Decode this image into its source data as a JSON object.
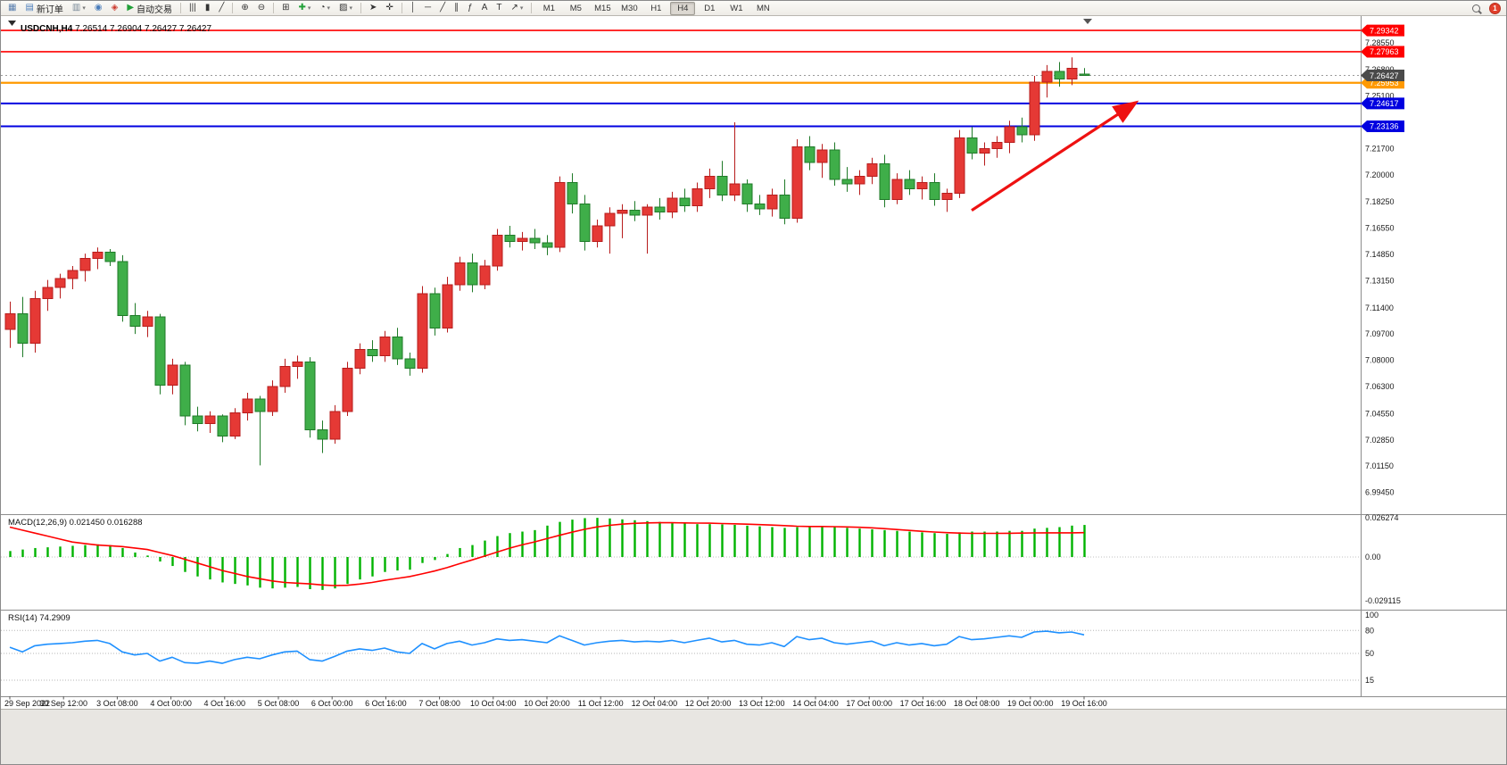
{
  "toolbar": {
    "groups": [
      {
        "items": [
          {
            "name": "new-chart",
            "glyph": "▦",
            "glyph_color": "#5a7fae"
          },
          {
            "name": "new-order",
            "glyph": "▤",
            "glyph_color": "#4a7dbb",
            "label": "新订单"
          },
          {
            "name": "profiles",
            "glyph": "▥",
            "glyph_color": "#7a8a99",
            "caret": true
          },
          {
            "name": "support",
            "glyph": "◉",
            "glyph_color": "#4a7dbb"
          },
          {
            "name": "news",
            "glyph": "◈",
            "glyph_color": "#cc3b2f"
          },
          {
            "name": "auto-trading",
            "glyph": "▶",
            "glyph_color": "#21a038",
            "label": "自动交易"
          }
        ]
      },
      {
        "items": [
          {
            "name": "chart-bars",
            "glyph": "|||"
          },
          {
            "name": "chart-candles",
            "glyph": "▮"
          },
          {
            "name": "chart-line",
            "glyph": "╱"
          }
        ]
      },
      {
        "items": [
          {
            "name": "zoom-in",
            "glyph": "⊕"
          },
          {
            "name": "zoom-out",
            "glyph": "⊖"
          }
        ]
      },
      {
        "items": [
          {
            "name": "tile-windows",
            "glyph": "⊞"
          },
          {
            "name": "indicators",
            "glyph": "✚",
            "glyph_color": "#21a038",
            "caret": true
          },
          {
            "name": "periods",
            "glyph": "◔",
            "caret": true
          },
          {
            "name": "templates",
            "glyph": "▨",
            "caret": true
          }
        ]
      },
      {
        "items": [
          {
            "name": "cursor",
            "glyph": "➤"
          },
          {
            "name": "crosshair",
            "glyph": "✛"
          }
        ]
      },
      {
        "items": [
          {
            "name": "vertical-line",
            "glyph": "│"
          },
          {
            "name": "horizontal-line",
            "glyph": "─"
          },
          {
            "name": "trendline",
            "glyph": "╱"
          },
          {
            "name": "equidistant-channel",
            "glyph": "∥"
          },
          {
            "name": "fibonacci",
            "glyph": "ƒ"
          },
          {
            "name": "text",
            "glyph": "A"
          },
          {
            "name": "text-label",
            "glyph": "T"
          },
          {
            "name": "arrows",
            "glyph": "↗",
            "caret": true
          }
        ]
      }
    ],
    "timeframes": {
      "options": [
        "M1",
        "M5",
        "M15",
        "M30",
        "H1",
        "H4",
        "D1",
        "W1",
        "MN"
      ],
      "active": "H4"
    },
    "notification_count": "1"
  },
  "chart": {
    "title_symbol": "USDCNH,H4",
    "title_ohlc": "7.26514 7.26904 7.26427 7.26427"
  },
  "chart_data": [
    {
      "type": "candlestick",
      "symbol": "USDCNH",
      "timeframe": "H4",
      "ylim": [
        6.9816,
        7.3004
      ],
      "colors": {
        "bull": "#e53935",
        "bull_border": "#b71c1c",
        "bear": "#3fae49",
        "bear_border": "#1f7a28"
      },
      "price_ticks": [
        "7.28550",
        "7.26800",
        "7.25100",
        "7.21700",
        "7.20000",
        "7.18250",
        "7.16550",
        "7.14850",
        "7.13150",
        "7.11400",
        "7.09700",
        "7.08000",
        "7.06300",
        "7.04550",
        "7.02850",
        "7.01150",
        "6.99450"
      ],
      "x_labels": [
        "29 Sep 2022",
        "30 Sep 12:00",
        "3 Oct 08:00",
        "4 Oct 00:00",
        "4 Oct 16:00",
        "5 Oct 08:00",
        "6 Oct 00:00",
        "6 Oct 16:00",
        "7 Oct 08:00",
        "10 Oct 04:00",
        "10 Oct 20:00",
        "11 Oct 12:00",
        "12 Oct 04:00",
        "12 Oct 20:00",
        "13 Oct 12:00",
        "14 Oct 04:00",
        "17 Oct 00:00",
        "17 Oct 16:00",
        "18 Oct 08:00",
        "19 Oct 00:00",
        "19 Oct 16:00"
      ],
      "hlines": [
        {
          "price": 7.29342,
          "label": "7.29342",
          "color": "#ff0000",
          "width": 1.6
        },
        {
          "price": 7.27963,
          "label": "7.27963",
          "color": "#ff0000",
          "width": 1.6
        },
        {
          "price": 7.25953,
          "label": "7.25953",
          "color": "#ff9900",
          "width": 2.2
        },
        {
          "price": 7.24617,
          "label": "7.24617",
          "color": "#0000e0",
          "width": 2
        },
        {
          "price": 7.23136,
          "label": "7.23136",
          "color": "#0000e0",
          "width": 2
        }
      ],
      "current_price": {
        "value": 7.26427,
        "label": "7.26427",
        "badge_color": "#4a4a4a"
      },
      "arrow": {
        "from_bar": 77,
        "from_price": 7.177,
        "to_bar": 90,
        "to_price": 7.246,
        "color": "#ee1111"
      },
      "ohlc": [
        [
          7.1,
          7.118,
          7.088,
          7.11
        ],
        [
          7.11,
          7.121,
          7.082,
          7.091
        ],
        [
          7.091,
          7.125,
          7.085,
          7.12
        ],
        [
          7.12,
          7.132,
          7.112,
          7.127
        ],
        [
          7.127,
          7.136,
          7.12,
          7.133
        ],
        [
          7.133,
          7.141,
          7.126,
          7.138
        ],
        [
          7.138,
          7.149,
          7.131,
          7.146
        ],
        [
          7.146,
          7.153,
          7.139,
          7.15
        ],
        [
          7.15,
          7.152,
          7.141,
          7.144
        ],
        [
          7.144,
          7.148,
          7.105,
          7.109
        ],
        [
          7.109,
          7.117,
          7.097,
          7.102
        ],
        [
          7.102,
          7.112,
          7.095,
          7.108
        ],
        [
          7.108,
          7.11,
          7.058,
          7.064
        ],
        [
          7.064,
          7.081,
          7.058,
          7.077
        ],
        [
          7.077,
          7.079,
          7.038,
          7.044
        ],
        [
          7.044,
          7.05,
          7.034,
          7.039
        ],
        [
          7.039,
          7.047,
          7.033,
          7.044
        ],
        [
          7.044,
          7.045,
          7.027,
          7.031
        ],
        [
          7.031,
          7.049,
          7.029,
          7.046
        ],
        [
          7.046,
          7.059,
          7.041,
          7.055
        ],
        [
          7.055,
          7.057,
          7.012,
          7.047
        ],
        [
          7.047,
          7.067,
          7.044,
          7.063
        ],
        [
          7.063,
          7.081,
          7.059,
          7.076
        ],
        [
          7.076,
          7.083,
          7.068,
          7.079
        ],
        [
          7.079,
          7.082,
          7.03,
          7.035
        ],
        [
          7.035,
          7.041,
          7.02,
          7.029
        ],
        [
          7.029,
          7.051,
          7.026,
          7.047
        ],
        [
          7.047,
          7.079,
          7.044,
          7.075
        ],
        [
          7.075,
          7.091,
          7.071,
          7.087
        ],
        [
          7.087,
          7.093,
          7.079,
          7.083
        ],
        [
          7.083,
          7.099,
          7.079,
          7.095
        ],
        [
          7.095,
          7.101,
          7.077,
          7.081
        ],
        [
          7.081,
          7.085,
          7.07,
          7.075
        ],
        [
          7.075,
          7.128,
          7.072,
          7.123
        ],
        [
          7.123,
          7.127,
          7.096,
          7.101
        ],
        [
          7.101,
          7.134,
          7.098,
          7.129
        ],
        [
          7.129,
          7.147,
          7.125,
          7.143
        ],
        [
          7.143,
          7.149,
          7.124,
          7.129
        ],
        [
          7.129,
          7.145,
          7.126,
          7.141
        ],
        [
          7.141,
          7.165,
          7.138,
          7.161
        ],
        [
          7.161,
          7.167,
          7.153,
          7.157
        ],
        [
          7.157,
          7.163,
          7.151,
          7.159
        ],
        [
          7.159,
          7.165,
          7.152,
          7.156
        ],
        [
          7.156,
          7.161,
          7.148,
          7.153
        ],
        [
          7.153,
          7.199,
          7.15,
          7.195
        ],
        [
          7.195,
          7.201,
          7.175,
          7.181
        ],
        [
          7.181,
          7.187,
          7.151,
          7.157
        ],
        [
          7.157,
          7.171,
          7.153,
          7.167
        ],
        [
          7.167,
          7.179,
          7.149,
          7.175
        ],
        [
          7.175,
          7.181,
          7.159,
          7.177
        ],
        [
          7.177,
          7.183,
          7.17,
          7.174
        ],
        [
          7.174,
          7.181,
          7.149,
          7.179
        ],
        [
          7.179,
          7.185,
          7.171,
          7.176
        ],
        [
          7.176,
          7.189,
          7.172,
          7.185
        ],
        [
          7.185,
          7.191,
          7.176,
          7.18
        ],
        [
          7.18,
          7.195,
          7.176,
          7.191
        ],
        [
          7.191,
          7.204,
          7.185,
          7.199
        ],
        [
          7.199,
          7.209,
          7.183,
          7.187
        ],
        [
          7.187,
          7.234,
          7.183,
          7.194
        ],
        [
          7.194,
          7.197,
          7.176,
          7.181
        ],
        [
          7.181,
          7.187,
          7.174,
          7.178
        ],
        [
          7.178,
          7.191,
          7.173,
          7.187
        ],
        [
          7.187,
          7.197,
          7.168,
          7.172
        ],
        [
          7.172,
          7.223,
          7.169,
          7.218
        ],
        [
          7.218,
          7.225,
          7.203,
          7.208
        ],
        [
          7.208,
          7.22,
          7.198,
          7.216
        ],
        [
          7.216,
          7.221,
          7.193,
          7.197
        ],
        [
          7.197,
          7.205,
          7.189,
          7.194
        ],
        [
          7.194,
          7.203,
          7.187,
          7.199
        ],
        [
          7.199,
          7.211,
          7.194,
          7.207
        ],
        [
          7.207,
          7.213,
          7.179,
          7.184
        ],
        [
          7.184,
          7.201,
          7.181,
          7.197
        ],
        [
          7.197,
          7.203,
          7.187,
          7.191
        ],
        [
          7.191,
          7.199,
          7.184,
          7.195
        ],
        [
          7.195,
          7.201,
          7.18,
          7.184
        ],
        [
          7.184,
          7.191,
          7.176,
          7.188
        ],
        [
          7.188,
          7.229,
          7.185,
          7.224
        ],
        [
          7.224,
          7.231,
          7.21,
          7.214
        ],
        [
          7.214,
          7.221,
          7.206,
          7.217
        ],
        [
          7.217,
          7.225,
          7.211,
          7.221
        ],
        [
          7.221,
          7.235,
          7.214,
          7.231
        ],
        [
          7.231,
          7.237,
          7.221,
          7.226
        ],
        [
          7.226,
          7.264,
          7.222,
          7.26
        ],
        [
          7.26,
          7.271,
          7.25,
          7.267
        ],
        [
          7.267,
          7.273,
          7.257,
          7.262
        ],
        [
          7.262,
          7.276,
          7.258,
          7.269
        ],
        [
          7.26514,
          7.26904,
          7.26427,
          7.26427
        ]
      ]
    },
    {
      "type": "bar",
      "title": "MACD(12,26,9)",
      "value_main": "0.021450",
      "value_signal": "0.016288",
      "ylim": [
        -0.03224,
        0.02806
      ],
      "axis_ticks": [
        "0.026274",
        "0.00",
        "-0.029115"
      ],
      "colors": {
        "hist": "#00b300",
        "signal": "#ff0000"
      },
      "values": [
        0.004,
        0.005,
        0.006,
        0.0065,
        0.007,
        0.0075,
        0.008,
        0.0085,
        0.008,
        0.006,
        0.003,
        0.001,
        -0.003,
        -0.006,
        -0.01,
        -0.013,
        -0.015,
        -0.017,
        -0.018,
        -0.019,
        -0.0205,
        -0.021,
        -0.0205,
        -0.02,
        -0.0215,
        -0.022,
        -0.021,
        -0.018,
        -0.015,
        -0.013,
        -0.01,
        -0.009,
        -0.0085,
        -0.004,
        -0.002,
        0.002,
        0.006,
        0.008,
        0.011,
        0.014,
        0.016,
        0.017,
        0.018,
        0.021,
        0.0235,
        0.025,
        0.026,
        0.0262,
        0.0258,
        0.0252,
        0.0246,
        0.024,
        0.0235,
        0.023,
        0.0225,
        0.022,
        0.022,
        0.0218,
        0.0215,
        0.021,
        0.0205,
        0.02,
        0.0195,
        0.02,
        0.0205,
        0.0205,
        0.02,
        0.0195,
        0.019,
        0.0185,
        0.018,
        0.0175,
        0.017,
        0.0165,
        0.016,
        0.0155,
        0.0165,
        0.017,
        0.017,
        0.017,
        0.0175,
        0.0175,
        0.019,
        0.0195,
        0.02,
        0.021,
        0.02145
      ],
      "signal": [
        0.02,
        0.018,
        0.016,
        0.014,
        0.012,
        0.01,
        0.009,
        0.008,
        0.0075,
        0.007,
        0.006,
        0.005,
        0.003,
        0.001,
        -0.0015,
        -0.004,
        -0.0065,
        -0.009,
        -0.011,
        -0.013,
        -0.0145,
        -0.016,
        -0.017,
        -0.0175,
        -0.018,
        -0.0187,
        -0.0191,
        -0.0189,
        -0.0181,
        -0.017,
        -0.0156,
        -0.0143,
        -0.0131,
        -0.0113,
        -0.0094,
        -0.0071,
        -0.0045,
        -0.002,
        0.0006,
        0.0033,
        0.0059,
        0.0081,
        0.0101,
        0.0123,
        0.0145,
        0.0166,
        0.0185,
        0.0201,
        0.0212,
        0.022,
        0.0225,
        0.0228,
        0.0229,
        0.0229,
        0.0228,
        0.0227,
        0.0226,
        0.0224,
        0.0222,
        0.022,
        0.0217,
        0.0214,
        0.021,
        0.0206,
        0.0204,
        0.0204,
        0.0203,
        0.0201,
        0.0199,
        0.0195,
        0.019,
        0.0184,
        0.0178,
        0.0172,
        0.0167,
        0.0163,
        0.016,
        0.0158,
        0.0158,
        0.0158,
        0.0159,
        0.016,
        0.0161,
        0.0162,
        0.0162,
        0.0162,
        0.016288
      ]
    },
    {
      "type": "line",
      "title": "RSI(14)",
      "value": "74.2909",
      "ylim": [
        -6,
        106
      ],
      "levels": [
        80,
        50,
        15
      ],
      "axis_ticks": [
        "100",
        "80",
        "50",
        "15"
      ],
      "color": "#1e90ff",
      "values": [
        58,
        52,
        60,
        62,
        63,
        64,
        66,
        67,
        63,
        52,
        48,
        50,
        40,
        45,
        38,
        37,
        40,
        37,
        42,
        45,
        43,
        48,
        52,
        53,
        42,
        40,
        46,
        53,
        56,
        54,
        57,
        52,
        50,
        63,
        56,
        63,
        66,
        61,
        64,
        69,
        67,
        68,
        66,
        64,
        73,
        67,
        61,
        64,
        66,
        67,
        65,
        66,
        65,
        67,
        64,
        67,
        70,
        65,
        67,
        62,
        61,
        64,
        59,
        72,
        68,
        70,
        64,
        62,
        64,
        66,
        60,
        64,
        61,
        63,
        60,
        62,
        72,
        68,
        69,
        71,
        73,
        71,
        78,
        79,
        77,
        78,
        74.29
      ]
    }
  ]
}
